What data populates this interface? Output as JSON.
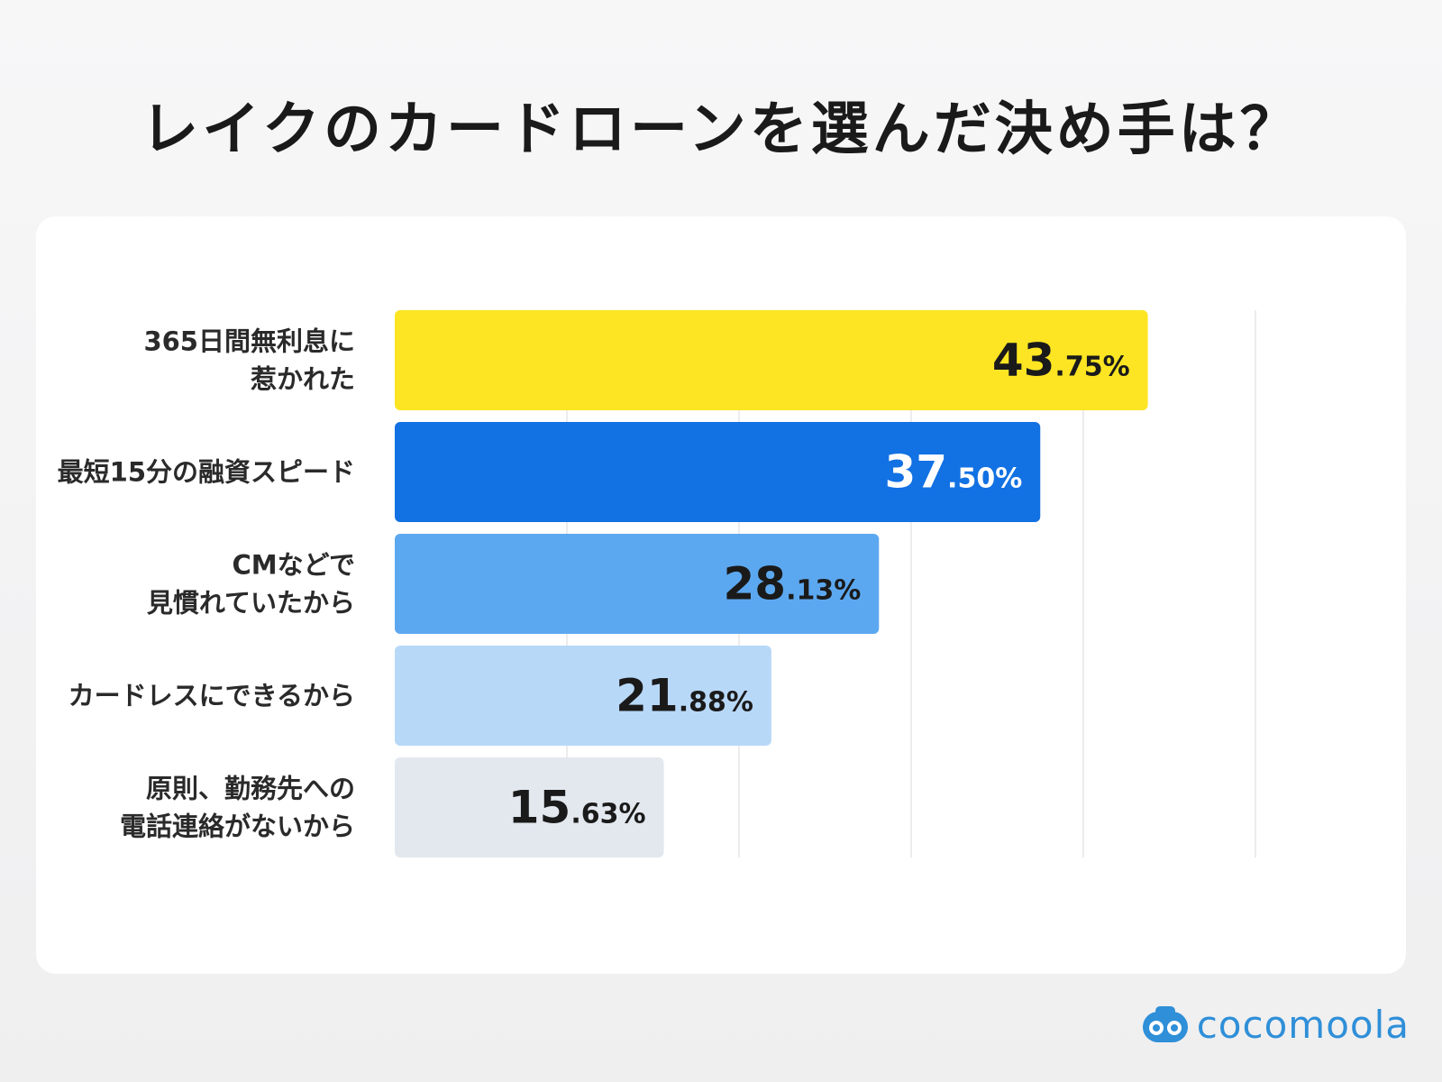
{
  "header": {
    "title": "レイクのカードローンを選んだ決め手は？"
  },
  "chart_data": {
    "type": "bar",
    "orientation": "horizontal",
    "title": "レイクのカードローンを選んだ決め手は？",
    "xlim": [
      0,
      50
    ],
    "grid_step": 10,
    "grid": true,
    "legend": "none",
    "categories": [
      [
        "365日間無利息に",
        "惹かれた"
      ],
      [
        "最短15分の融資スピード"
      ],
      [
        "CMなどで",
        "見慣れていたから"
      ],
      [
        "カードレスにできるから"
      ],
      [
        "原則、勤務先への",
        "電話連絡がないから"
      ]
    ],
    "values": [
      43.75,
      37.5,
      28.13,
      21.88,
      15.63
    ],
    "value_labels": [
      {
        "int": "43",
        "dec": ".75%"
      },
      {
        "int": "37",
        "dec": ".50%"
      },
      {
        "int": "28",
        "dec": ".13%"
      },
      {
        "int": "21",
        "dec": ".88%"
      },
      {
        "int": "15",
        "dec": ".63%"
      }
    ],
    "colors": [
      "#FDE523",
      "#1271E3",
      "#5CA8F0",
      "#B8D8F8",
      "#E3E8EF"
    ],
    "label_colors": [
      "#1a1a1a",
      "#ffffff",
      "#1a1a1a",
      "#1a1a1a",
      "#1a1a1a"
    ],
    "grid_color": "#e6e6e6"
  },
  "brand": {
    "name": "cocomoola",
    "color": "#2f8fd8"
  }
}
